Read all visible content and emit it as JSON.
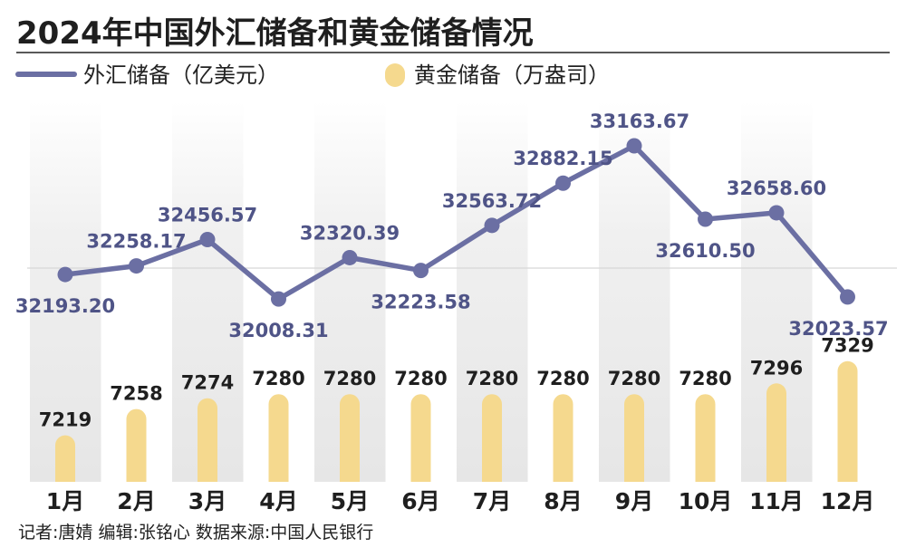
{
  "chart_data": {
    "type": "bar+line",
    "title": "2024年中国外汇储备和黄金储备情况",
    "categories": [
      "1月",
      "2月",
      "3月",
      "4月",
      "5月",
      "6月",
      "7月",
      "8月",
      "9月",
      "10月",
      "11月",
      "12月"
    ],
    "series": [
      {
        "name": "外汇储备（亿美元）",
        "type": "line",
        "values": [
          32193.2,
          32258.17,
          32456.57,
          32008.31,
          32320.39,
          32223.58,
          32563.72,
          32882.15,
          33163.67,
          32610.5,
          32658.6,
          32023.57
        ],
        "labels": [
          "32193.20",
          "32258.17",
          "32456.57",
          "32008.31",
          "32320.39",
          "32223.58",
          "32563.72",
          "32882.15",
          "33163.67",
          "32610.50",
          "32658.60",
          "32023.57"
        ]
      },
      {
        "name": "黄金储备（万盎司）",
        "type": "bar",
        "values": [
          7219,
          7258,
          7274,
          7280,
          7280,
          7280,
          7280,
          7280,
          7280,
          7280,
          7296,
          7329
        ],
        "labels": [
          "7219",
          "7258",
          "7274",
          "7280",
          "7280",
          "7280",
          "7280",
          "7280",
          "7280",
          "7280",
          "7296",
          "7329"
        ]
      }
    ],
    "legend_position": "top-left",
    "colors": {
      "line": "#6b6fa3",
      "bar": "#f5d98e",
      "label_fx": "#4f5487",
      "stripe": "#ececec"
    }
  },
  "footer": "记者:唐婧  编辑:张铭心  数据来源:中国人民银行"
}
